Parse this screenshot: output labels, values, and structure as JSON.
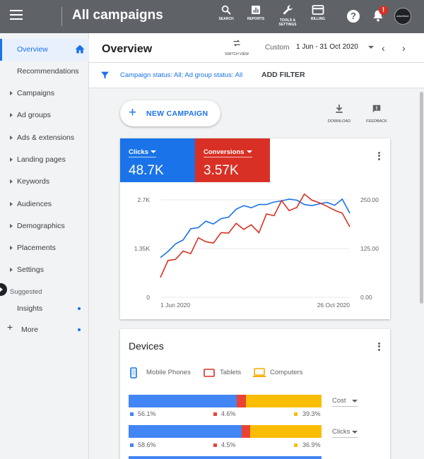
{
  "header": {
    "title": "All campaigns",
    "buttons": [
      {
        "id": "search",
        "label": "SEARCH",
        "icon": "search-icon"
      },
      {
        "id": "reports",
        "label": "REPORTS",
        "icon": "reports-icon"
      },
      {
        "id": "tools",
        "label": "TOOLS &\nSETTINGS",
        "icon": "wrench-icon"
      },
      {
        "id": "billing",
        "label": "BILLING",
        "icon": "billing-icon"
      }
    ],
    "notification_badge": "!",
    "avatar_text": "advertiser"
  },
  "sidebar": {
    "items": [
      {
        "label": "Overview",
        "active": true,
        "expandable": false
      },
      {
        "label": "Recommendations",
        "active": false,
        "expandable": false
      },
      {
        "label": "Campaigns",
        "active": false,
        "expandable": true
      },
      {
        "label": "Ad groups",
        "active": false,
        "expandable": true
      },
      {
        "label": "Ads & extensions",
        "active": false,
        "expandable": true
      },
      {
        "label": "Landing pages",
        "active": false,
        "expandable": true
      },
      {
        "label": "Keywords",
        "active": false,
        "expandable": true
      },
      {
        "label": "Audiences",
        "active": false,
        "expandable": true
      },
      {
        "label": "Demographics",
        "active": false,
        "expandable": true
      },
      {
        "label": "Placements",
        "active": false,
        "expandable": true
      },
      {
        "label": "Settings",
        "active": false,
        "expandable": true
      }
    ],
    "suggested_label": "Suggested",
    "insights_label": "Insights",
    "more_label": "More"
  },
  "content_header": {
    "title": "Overview",
    "switch_view_label": "SWITCH VIEW",
    "date_custom_label": "Custom",
    "date_range": "1 Jun - 31 Oct 2020"
  },
  "filter_bar": {
    "filter_text": "Campaign status: All; Ad group status: All",
    "add_filter_label": "ADD FILTER"
  },
  "actions": {
    "new_campaign_label": "NEW CAMPAIGN",
    "download_label": "DOWNLOAD",
    "feedback_label": "FEEDBACK"
  },
  "performance": {
    "metrics": [
      {
        "name": "Clicks",
        "value": "48.7K",
        "color": "#1a73e8"
      },
      {
        "name": "Conversions",
        "value": "3.57K",
        "color": "#d93025"
      }
    ]
  },
  "chart_data": {
    "type": "line",
    "title": "",
    "xlabel": "",
    "ylabel": "",
    "x_tick_labels": [
      "1 Jun 2020",
      "26 Oct 2020"
    ],
    "y_left_ticks": [
      "0",
      "1.35K",
      "2.7K"
    ],
    "y_right_ticks": [
      "0.00",
      "125.00",
      "250.00"
    ],
    "ylim_left": [
      0,
      2700
    ],
    "ylim_right": [
      0,
      250
    ],
    "grid": true,
    "legend": "none",
    "series": [
      {
        "axis": "left",
        "color": "#1a73e8",
        "values": [
          1100,
          1270,
          1480,
          1590,
          1900,
          1930,
          2110,
          2030,
          2180,
          2220,
          2440,
          2540,
          2480,
          2570,
          2570,
          2640,
          2670,
          2720,
          2690,
          2570,
          2540,
          2590,
          2630,
          2550,
          2720,
          2330
        ]
      },
      {
        "axis": "left",
        "color": "#d93025",
        "values": [
          550,
          1020,
          1050,
          1280,
          1210,
          1650,
          1540,
          1500,
          1790,
          1780,
          2050,
          1880,
          2010,
          1790,
          2310,
          2260,
          2680,
          2400,
          2490,
          2860,
          2690,
          2620,
          2520,
          2410,
          2330,
          1950
        ]
      }
    ]
  },
  "devices": {
    "title": "Devices",
    "legend": [
      {
        "label": "Mobile Phones",
        "color": "#1a73e8"
      },
      {
        "label": "Tablets",
        "color": "#d93025"
      },
      {
        "label": "Computers",
        "color": "#f9ab00"
      }
    ],
    "colors": {
      "mobile": "#4285f4",
      "tablets": "#ea4335",
      "computers": "#fbbc04"
    },
    "rows": [
      {
        "metric": "Cost",
        "mobile": 56.1,
        "tablets": 4.6,
        "computers": 39.3,
        "mobile_label": "56.1%",
        "tablets_label": "4.6%",
        "computers_label": "39.3%"
      },
      {
        "metric": "Clicks",
        "mobile": 58.6,
        "tablets": 4.5,
        "computers": 36.9,
        "mobile_label": "58.6%",
        "tablets_label": "4.5%",
        "computers_label": "36.9%"
      }
    ]
  }
}
